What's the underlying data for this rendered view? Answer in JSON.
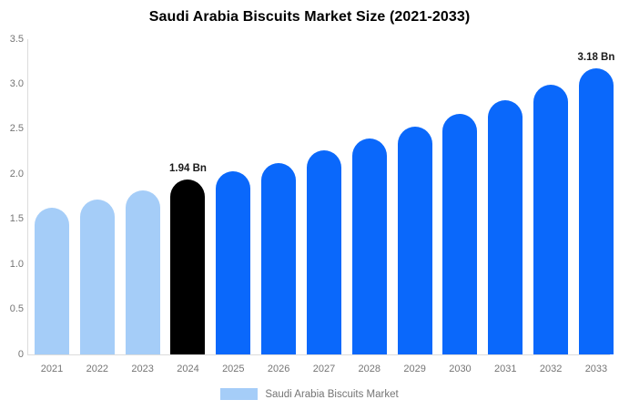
{
  "header": {
    "title": "Saudi Arabia Biscuits Market Size (2021-2033)"
  },
  "legend": {
    "label": "Saudi Arabia Biscuits Market",
    "swatch_color": "#a5cdf8"
  },
  "colors": {
    "light_blue": "#a5cdf8",
    "accent_blue": "#0a68fb",
    "highlight_black": "#000000",
    "axis_line": "#dcdcdc",
    "tick_text": "#757575",
    "annotation_text": "#1a1a1a"
  },
  "chart_data": {
    "type": "bar",
    "title": "Saudi Arabia Biscuits Market Size (2021-2033)",
    "xlabel": "",
    "ylabel": "",
    "unit": "Bn",
    "ylim": [
      0,
      3.5
    ],
    "ytick_labels": [
      "0",
      "0.5",
      "1.0",
      "1.5",
      "2.0",
      "2.5",
      "3.0",
      "3.5"
    ],
    "grid": false,
    "legend_position": "bottom",
    "legend_label": "Saudi Arabia Biscuits Market",
    "categories": [
      "2021",
      "2022",
      "2023",
      "2024",
      "2025",
      "2026",
      "2027",
      "2028",
      "2029",
      "2030",
      "2031",
      "2032",
      "2033"
    ],
    "values": [
      1.63,
      1.72,
      1.82,
      1.94,
      2.03,
      2.12,
      2.27,
      2.4,
      2.53,
      2.67,
      2.82,
      2.99,
      3.18
    ],
    "bar_colors": [
      "#a5cdf8",
      "#a5cdf8",
      "#a5cdf8",
      "#000000",
      "#0a68fb",
      "#0a68fb",
      "#0a68fb",
      "#0a68fb",
      "#0a68fb",
      "#0a68fb",
      "#0a68fb",
      "#0a68fb",
      "#0a68fb"
    ],
    "data_labels": [
      null,
      null,
      null,
      "1.94 Bn",
      null,
      null,
      null,
      null,
      null,
      null,
      null,
      null,
      "3.18 Bn"
    ]
  }
}
